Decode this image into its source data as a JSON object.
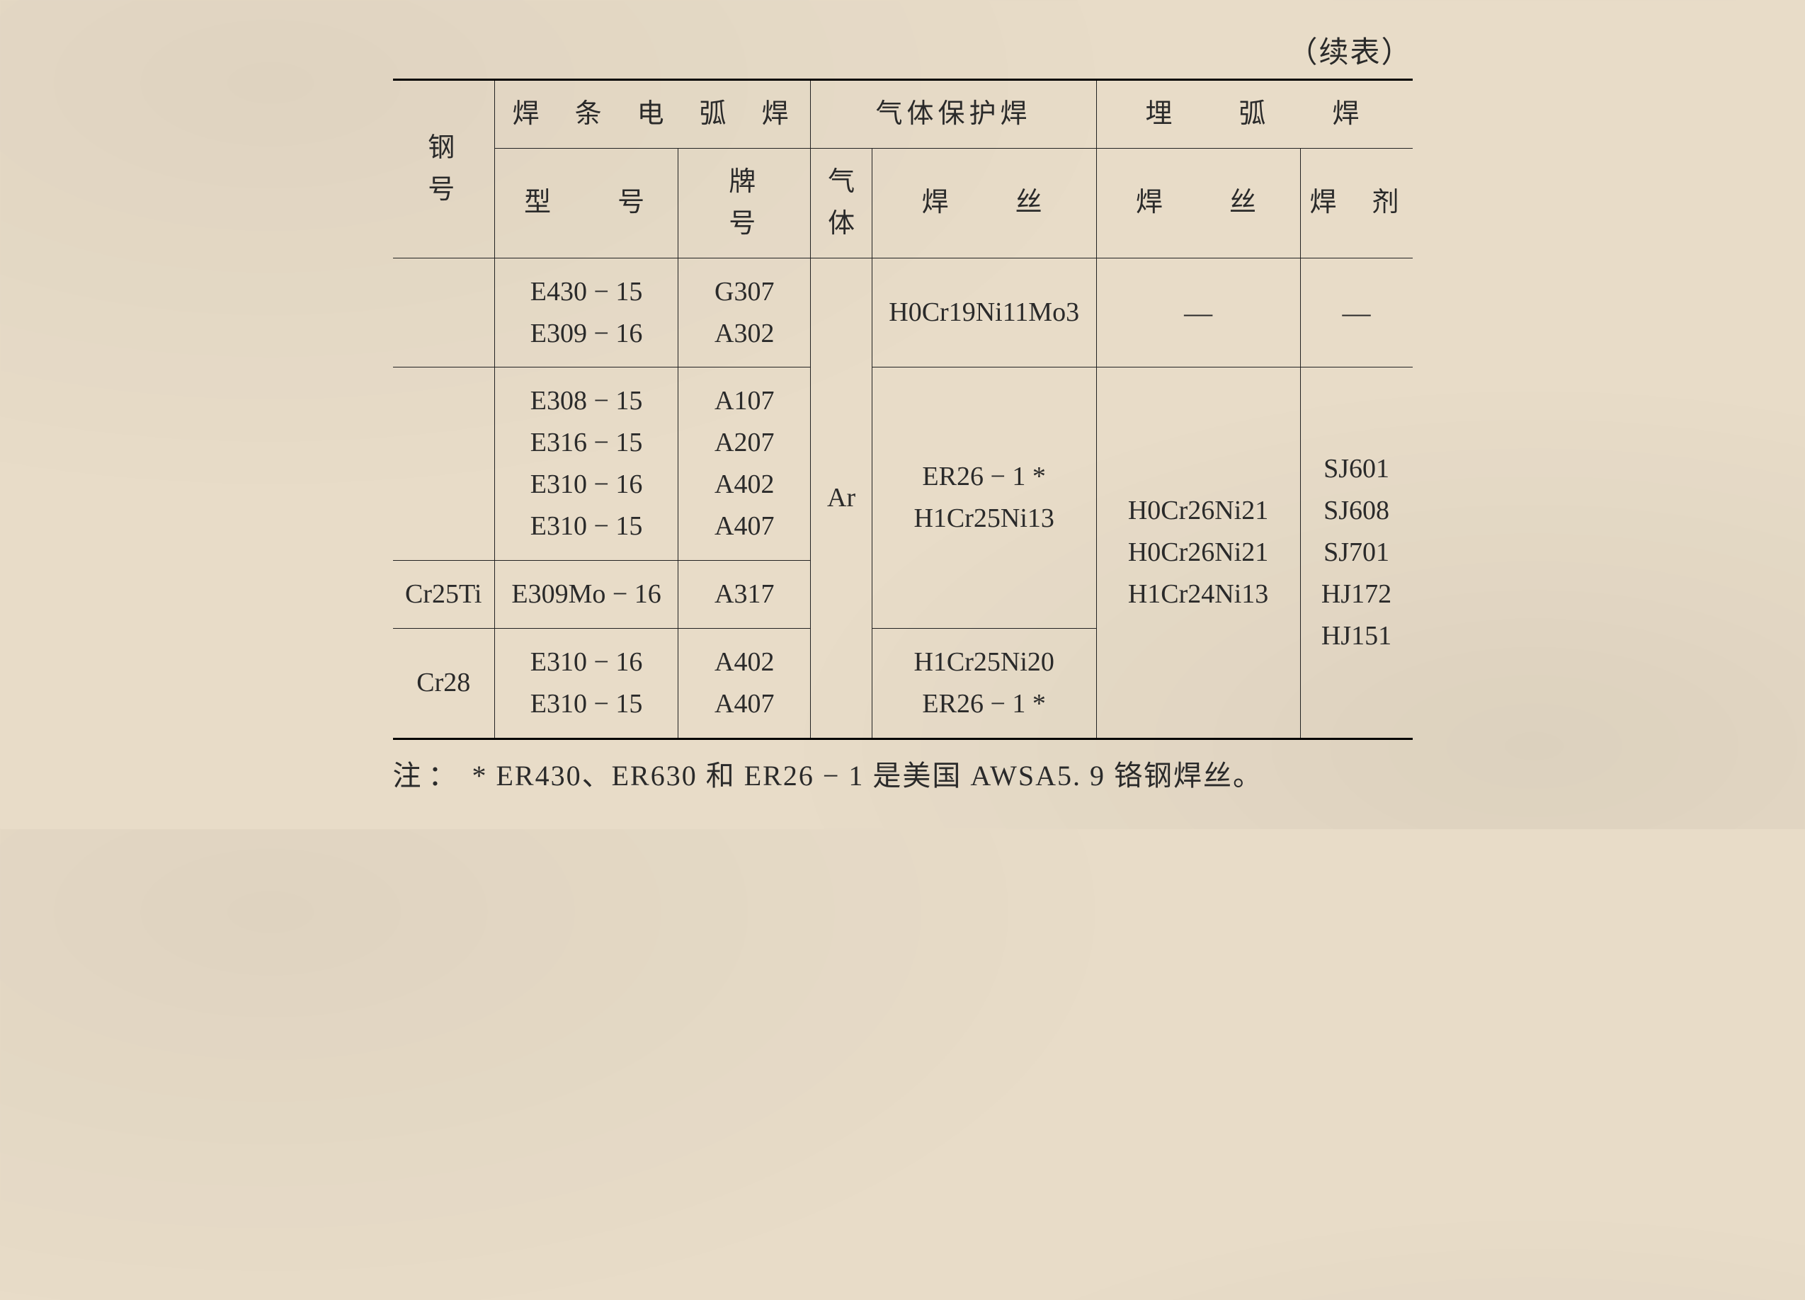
{
  "continuation_label": "（续表）",
  "headers": {
    "steel_grade": "钢　号",
    "smaw": "焊　条　电　弧　焊",
    "model": "型　　号",
    "brand": "牌　　号",
    "gas_shield": "气体保护焊",
    "gas": "气体",
    "gas_wire": "焊　　丝",
    "saw": "埋　　弧　　焊",
    "saw_wire": "焊　　丝",
    "flux": "焊　剂"
  },
  "gas_value": "Ar",
  "rows": [
    {
      "steel": "",
      "model": [
        "E430 − 15",
        "E309 − 16"
      ],
      "brand": [
        "G307",
        "A302"
      ],
      "gas_wire": [
        "H0Cr19Ni11Mo3"
      ],
      "saw_wire_dash": "—",
      "flux_dash": "—"
    },
    {
      "steel": "",
      "model": [
        "E308 − 15",
        "E316 − 15",
        "E310 − 16",
        "E310 − 15"
      ],
      "brand": [
        "A107",
        "A207",
        "A402",
        "A407"
      ]
    },
    {
      "steel": "Cr25Ti",
      "model": [
        "E309Mo − 16"
      ],
      "brand": [
        "A317"
      ]
    },
    {
      "steel": "Cr28",
      "model": [
        "E310 − 16",
        "E310 − 15"
      ],
      "brand": [
        "A402",
        "A407"
      ],
      "gas_wire": [
        "H1Cr25Ni20",
        "ER26 − 1 *"
      ]
    }
  ],
  "shared_gas_wire": [
    "ER26 − 1 *",
    "H1Cr25Ni13"
  ],
  "shared_saw_wire": [
    "H0Cr26Ni21",
    "H0Cr26Ni21",
    "H1Cr24Ni13"
  ],
  "shared_flux": [
    "SJ601",
    "SJ608",
    "SJ701",
    "HJ172",
    "HJ151"
  ],
  "footnote": {
    "label": "注：",
    "text": "* ER430、ER630 和 ER26 − 1 是美国 AWSA5. 9 铬钢焊丝。"
  }
}
